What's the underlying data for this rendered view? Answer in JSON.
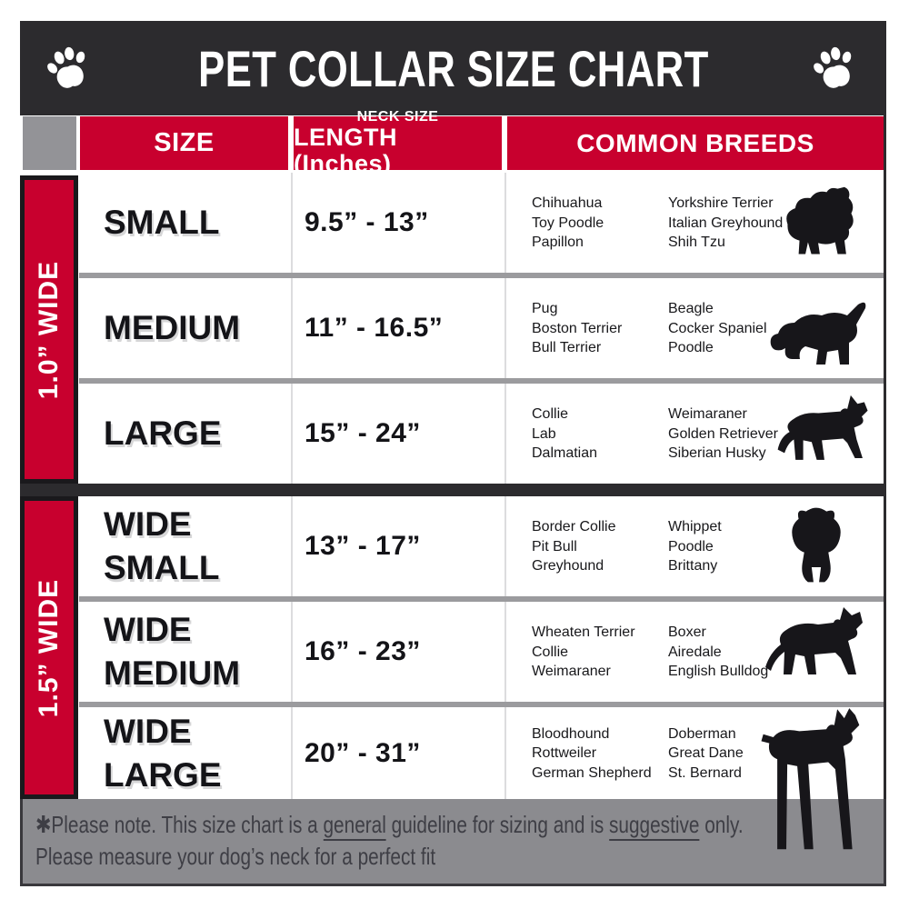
{
  "title": "PET COLLAR SIZE CHART",
  "header": {
    "size": "SIZE",
    "neck_top": "NECK SIZE",
    "neck_main": "LENGTH (Inches)",
    "breeds": "COMMON BREEDS"
  },
  "groups": [
    {
      "label": "1.0” WIDE",
      "rows": [
        "SMALL",
        "MEDIUM",
        "LARGE"
      ]
    },
    {
      "label": "1.5” WIDE",
      "rows": [
        "WIDE SMALL",
        "WIDE MEDIUM",
        "WIDE LARGE"
      ]
    }
  ],
  "rows": [
    {
      "size": "SMALL",
      "length": "9.5” - 13”",
      "breeds_col1": [
        "Chihuahua",
        "Toy Poodle",
        "Papillon"
      ],
      "breeds_col2": [
        "Yorkshire Terrier",
        "Italian Greyhound",
        "Shih Tzu"
      ],
      "dog_icon": "shih-tzu-silhouette"
    },
    {
      "size": "MEDIUM",
      "length": "11” - 16.5”",
      "breeds_col1": [
        "Pug",
        "Boston Terrier",
        "Bull Terrier"
      ],
      "breeds_col2": [
        "Beagle",
        "Cocker Spaniel",
        "Poodle"
      ],
      "dog_icon": "beagle-silhouette"
    },
    {
      "size": "LARGE",
      "length": "15” - 24”",
      "breeds_col1": [
        "Collie",
        "Lab",
        "Dalmatian"
      ],
      "breeds_col2": [
        "Weimaraner",
        "Golden Retriever",
        "Siberian Husky"
      ],
      "dog_icon": "german-shepherd-silhouette"
    },
    {
      "size": "WIDE SMALL",
      "length": "13” - 17”",
      "breeds_col1": [
        "Border Collie",
        "Pit Bull",
        "Greyhound"
      ],
      "breeds_col2": [
        "Whippet",
        "Poodle",
        "Brittany"
      ],
      "dog_icon": "boxer-silhouette"
    },
    {
      "size": "WIDE MEDIUM",
      "length": "16” - 23”",
      "breeds_col1": [
        "Wheaten Terrier",
        "Collie",
        "Weimaraner"
      ],
      "breeds_col2": [
        "Boxer",
        "Airedale",
        "English Bulldog"
      ],
      "dog_icon": "pit-bull-silhouette"
    },
    {
      "size": "WIDE LARGE",
      "length": "20” - 31”",
      "breeds_col1": [
        "Bloodhound",
        "Rottweiler",
        "German Shepherd"
      ],
      "breeds_col2": [
        "Doberman",
        "Great Dane",
        "St. Bernard"
      ],
      "dog_icon": "doberman-silhouette"
    }
  ],
  "footer": {
    "lines": [
      {
        "segments": [
          {
            "text": "✱Please note. This size chart is a "
          },
          {
            "text": "general",
            "underline": true
          },
          {
            "text": " guideline for sizing and is "
          },
          {
            "text": "suggestive",
            "underline": true
          },
          {
            "text": " only."
          }
        ]
      },
      {
        "segments": [
          {
            "text": "Please measure your dog’s neck for a perfect fit"
          }
        ]
      }
    ]
  },
  "colors": {
    "accent_red": "#c8002e",
    "charcoal": "#2c2b2e",
    "corner_gray": "#939397",
    "footer_gray": "#8b8b8f",
    "row_divider_gray": "#9b9b9e",
    "column_divider_gray": "#dcdcde"
  },
  "chart_data": {
    "type": "table",
    "title": "PET COLLAR SIZE CHART",
    "columns": [
      "SIZE",
      "NECK SIZE LENGTH (Inches)",
      "COMMON BREEDS"
    ],
    "row_groups": [
      "1.0” WIDE",
      "1.5” WIDE"
    ],
    "rows": [
      [
        "1.0” WIDE",
        "SMALL",
        "9.5” - 13”",
        "Chihuahua, Toy Poodle, Papillon, Yorkshire Terrier, Italian Greyhound, Shih Tzu"
      ],
      [
        "1.0” WIDE",
        "MEDIUM",
        "11” - 16.5”",
        "Pug, Boston Terrier, Bull Terrier, Beagle, Cocker Spaniel, Poodle"
      ],
      [
        "1.0” WIDE",
        "LARGE",
        "15” - 24”",
        "Collie, Lab, Dalmatian, Weimaraner, Golden Retriever, Siberian Husky"
      ],
      [
        "1.5” WIDE",
        "WIDE SMALL",
        "13” - 17”",
        "Border Collie, Pit Bull, Greyhound, Whippet, Poodle, Brittany"
      ],
      [
        "1.5” WIDE",
        "WIDE MEDIUM",
        "16” - 23”",
        "Wheaten Terrier, Collie, Weimaraner, Boxer, Airedale, English Bulldog"
      ],
      [
        "1.5” WIDE",
        "WIDE LARGE",
        "20” - 31”",
        "Bloodhound, Rottweiler, German Shepherd, Doberman, Great Dane, St. Bernard"
      ]
    ]
  }
}
